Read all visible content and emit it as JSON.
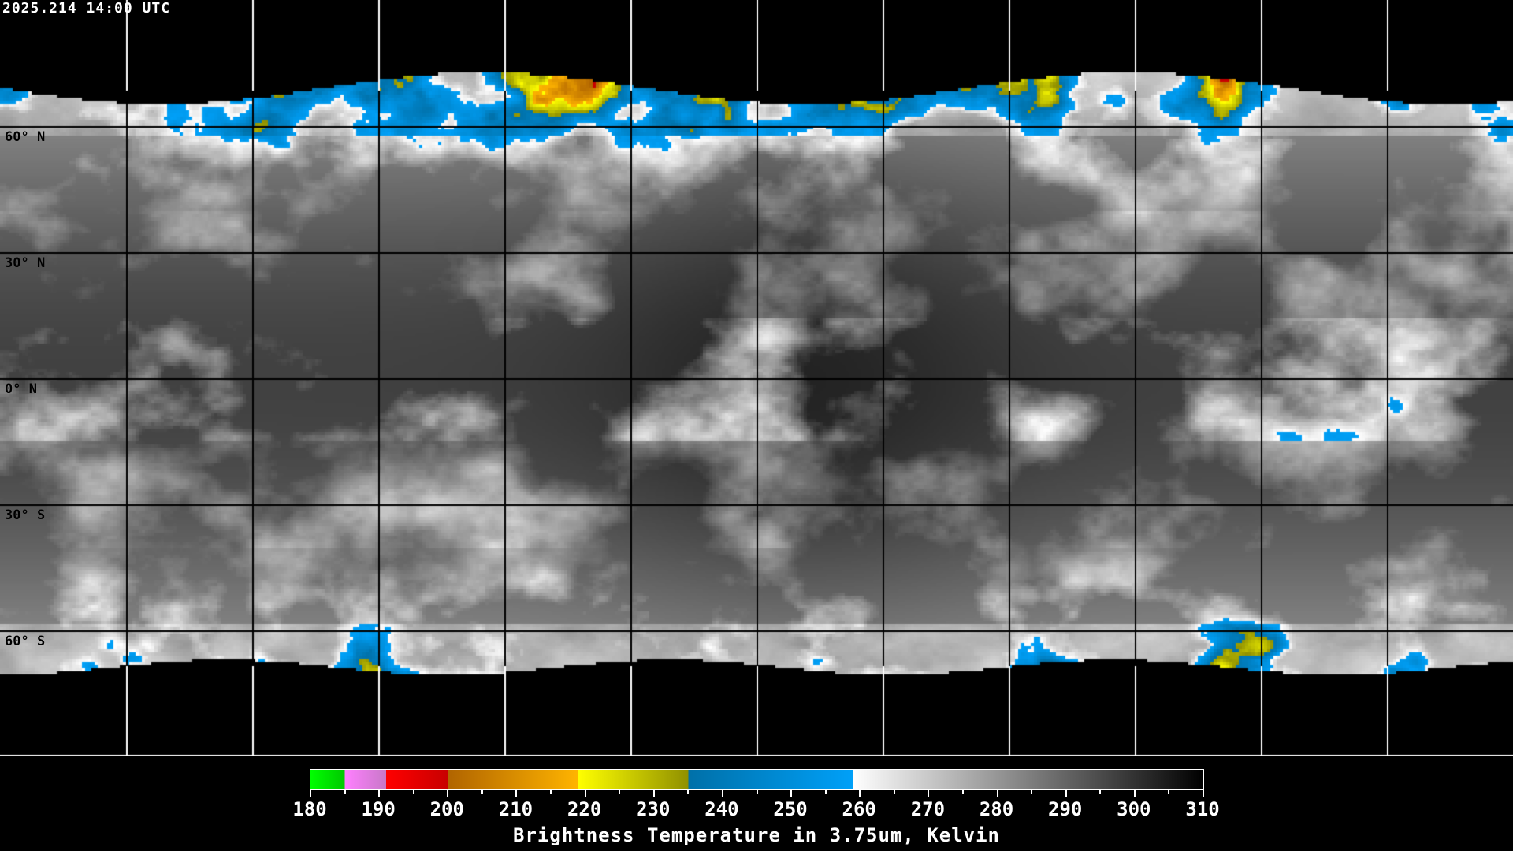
{
  "header": {
    "timestamp": "2025.214 14:00 UTC"
  },
  "map": {
    "projection": "equirectangular",
    "grid_spacing_deg": 30,
    "lat_labels": [
      "60° N",
      "30° N",
      "0° N",
      "30° S",
      "60° S"
    ],
    "background": "#000000",
    "coastline_colors": {
      "over_imagery": "#000000",
      "outside_imagery": "#ffffff"
    }
  },
  "colorbar": {
    "title": "Brightness Temperature in 3.75um, Kelvin",
    "min": 180,
    "max": 310,
    "tick_labels": [
      "180",
      "190",
      "200",
      "210",
      "220",
      "230",
      "240",
      "250",
      "260",
      "270",
      "280",
      "290",
      "300",
      "310"
    ],
    "segments": [
      {
        "from": 180,
        "to": 185,
        "start": "#00ff00",
        "end": "#00c800"
      },
      {
        "from": 185,
        "to": 191,
        "start": "#ff80ff",
        "end": "#c878c8"
      },
      {
        "from": 191,
        "to": 200,
        "start": "#ff0000",
        "end": "#c80000"
      },
      {
        "from": 200,
        "to": 219,
        "start": "#b06400",
        "end": "#ffb400"
      },
      {
        "from": 219,
        "to": 235,
        "start": "#ffff00",
        "end": "#909000"
      },
      {
        "from": 235,
        "to": 259,
        "start": "#0070a8",
        "end": "#00a0f8"
      },
      {
        "from": 259,
        "to": 310,
        "start": "#ffffff",
        "end": "#000000"
      }
    ]
  }
}
